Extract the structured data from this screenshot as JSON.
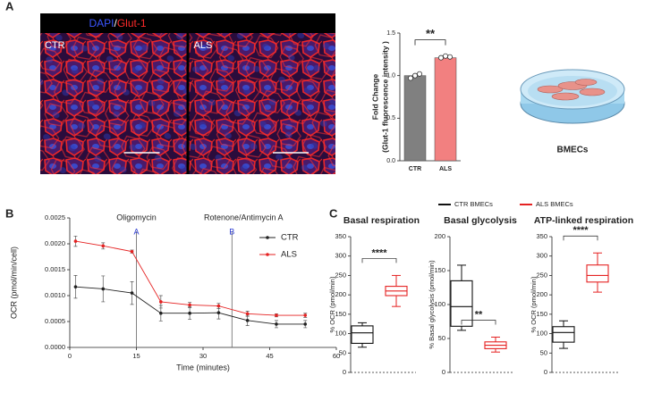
{
  "chart_data": [
    {
      "type": "image",
      "panel": "A",
      "stain_labels": [
        {
          "text": "DAPI",
          "color": "#3b55ff"
        },
        {
          "text": "/",
          "color": "#ffffff"
        },
        {
          "text": "Glut-1",
          "color": "#ff2a2a"
        }
      ],
      "images": [
        {
          "label": "CTR"
        },
        {
          "label": "ALS"
        }
      ]
    },
    {
      "type": "bar",
      "ylabel": [
        "Fold Change",
        "(Glut-1 fluorescence intensity )"
      ],
      "categories": [
        "CTR",
        "ALS"
      ],
      "values": [
        1.0,
        1.21
      ],
      "colors": [
        "#808080",
        "#f28080"
      ],
      "points": [
        [
          0.97,
          1.0,
          1.02
        ],
        [
          1.21,
          1.23,
          1.22
        ]
      ],
      "ylim": [
        0,
        1.5
      ],
      "yticks": [
        {
          "value": 0,
          "label": "0.0"
        },
        0.5,
        {
          "value": 1,
          "label": "1.0"
        },
        1.5
      ],
      "significance": "**"
    },
    {
      "type": "line",
      "panel": "B",
      "xlabel": "Time (minutes)",
      "ylabel": "OCR (pmol/min/cell)",
      "x": [
        1.3,
        7.5,
        14,
        20.5,
        27,
        33.5,
        40,
        46.5,
        53
      ],
      "series": [
        {
          "name": "CTR",
          "color": "#222222",
          "values": [
            0.00117,
            0.00113,
            0.00105,
            0.00066,
            0.00066,
            0.00067,
            0.00052,
            0.00045,
            0.00045
          ],
          "errors": [
            0.00022,
            0.00025,
            0.00022,
            0.00015,
            0.00012,
            0.00012,
            0.0001,
            7e-05,
            7e-05
          ]
        },
        {
          "name": "ALS",
          "color": "#e52222",
          "values": [
            0.00205,
            0.00196,
            0.00185,
            0.00088,
            0.00082,
            0.0008,
            0.00065,
            0.00062,
            0.00062
          ],
          "errors": [
            0.0001,
            6e-05,
            3e-05,
            0.00012,
            5e-05,
            5e-05,
            5e-05,
            3e-05,
            4e-05
          ]
        }
      ],
      "annotations": [
        {
          "x": 15,
          "label": "Oligomycin",
          "marker": "A"
        },
        {
          "x": 36.5,
          "label": "Rotenone/Antimycin A",
          "marker": "B"
        }
      ],
      "xlim": [
        0,
        60
      ],
      "xticks": [
        0,
        15,
        30,
        45,
        60
      ],
      "ylim": [
        0,
        0.0025
      ],
      "yticks": [
        {
          "value": 0,
          "label": "0.0000"
        },
        0.0005,
        {
          "value": 0.001,
          "label": "0.0010"
        },
        0.0015,
        {
          "value": 0.002,
          "label": "0.0020"
        },
        0.0025
      ],
      "legend": "upper right"
    },
    {
      "type": "box",
      "panel": "C",
      "series": [
        {
          "name": "CTR BMECs",
          "color": "#111111"
        },
        {
          "name": "ALS BMECs",
          "color": "#e52222"
        }
      ],
      "panels": [
        {
          "title": "Basal respiration",
          "ylabel": "% OCR (pmol/min)",
          "ylim": [
            0,
            350
          ],
          "yticks": [
            0,
            50,
            100,
            150,
            200,
            250,
            300,
            350
          ],
          "significance": "****",
          "boxes": [
            {
              "min": 65,
              "q1": 75,
              "median": 102,
              "q3": 120,
              "max": 128
            },
            {
              "min": 170,
              "q1": 198,
              "median": 210,
              "q3": 222,
              "max": 250
            }
          ]
        },
        {
          "title": "Basal glycolysis",
          "ylabel": "% Basal glycolysis (pmol/min)",
          "ylim": [
            0,
            200
          ],
          "yticks": [
            0,
            50,
            100,
            150,
            200
          ],
          "significance": "**",
          "boxes": [
            {
              "min": 62,
              "q1": 68,
              "median": 97,
              "q3": 135,
              "max": 158
            },
            {
              "min": 30,
              "q1": 35,
              "median": 40,
              "q3": 45,
              "max": 52
            }
          ]
        },
        {
          "title": "ATP-linked respiration",
          "ylabel": "% OCR (pmol/min)",
          "ylim": [
            0,
            350
          ],
          "yticks": [
            0,
            50,
            100,
            150,
            200,
            250,
            300,
            350
          ],
          "significance": "****",
          "boxes": [
            {
              "min": 62,
              "q1": 78,
              "median": 103,
              "q3": 118,
              "max": 133
            },
            {
              "min": 207,
              "q1": 233,
              "median": 250,
              "q3": 277,
              "max": 308
            }
          ]
        }
      ]
    }
  ],
  "illustration": {
    "label": "BMECs"
  }
}
